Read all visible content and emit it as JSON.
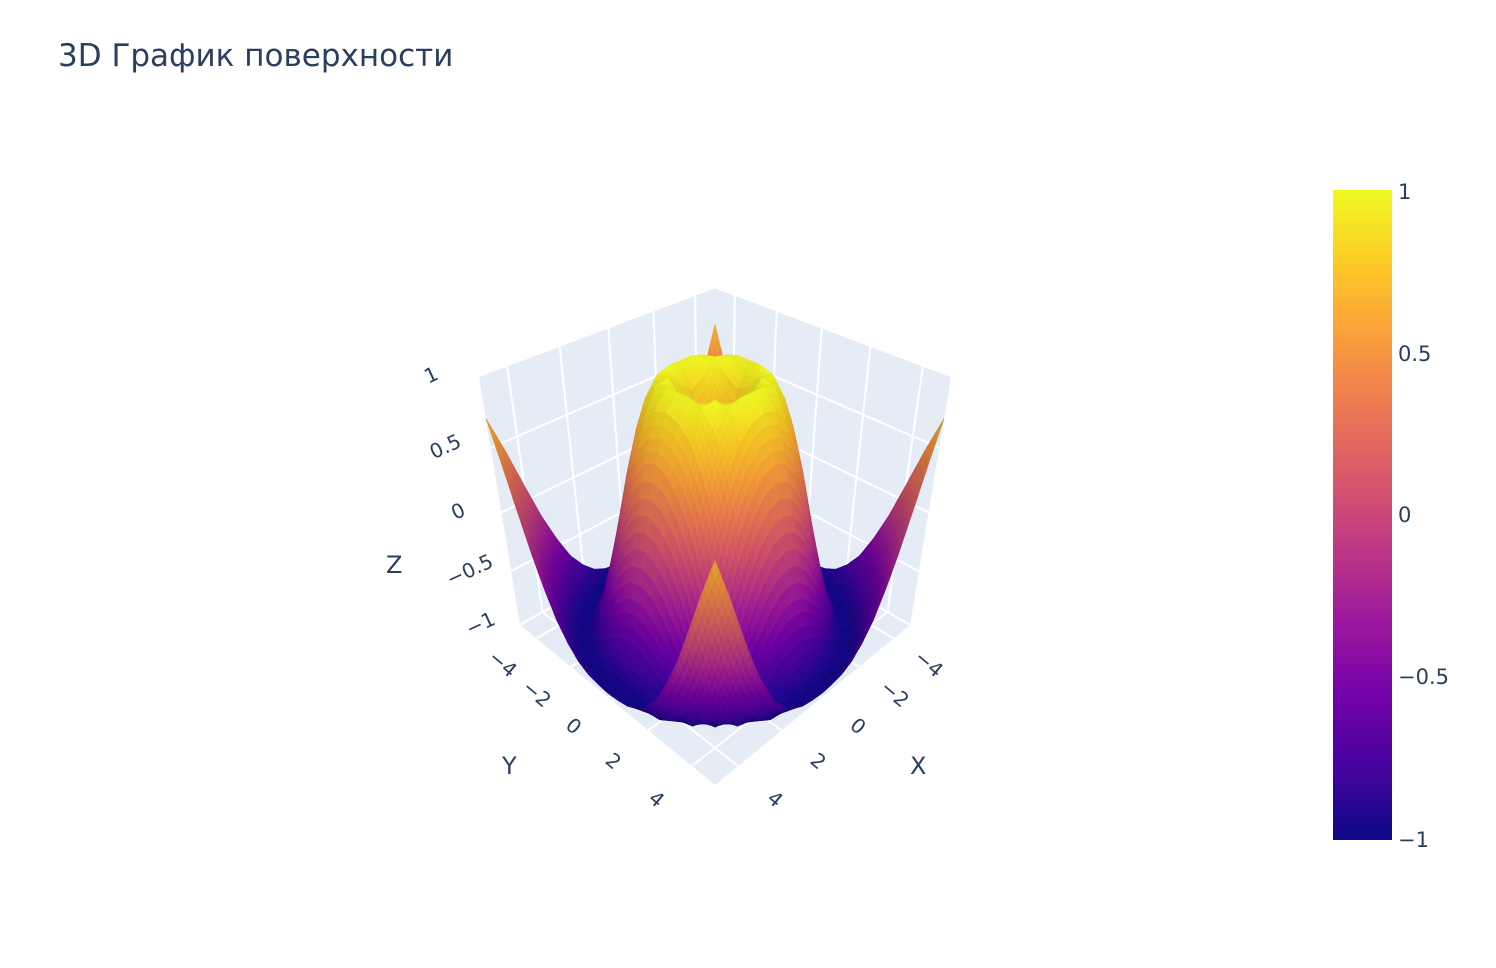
{
  "chart_data": {
    "type": "surface",
    "title": "3D График поверхности",
    "xlabel": "X",
    "ylabel": "Y",
    "zlabel": "Z",
    "xlim": [
      -5,
      5
    ],
    "ylim": [
      -5,
      5
    ],
    "zlim": [
      -1,
      1
    ],
    "xticks": [
      -4,
      -2,
      0,
      2,
      4
    ],
    "yticks": [
      -4,
      -2,
      0,
      2,
      4
    ],
    "zticks": [
      -1,
      -0.5,
      0,
      0.5,
      1
    ],
    "grid": true,
    "background_color": "#e5ecf6",
    "colorscale": [
      "#0d0887",
      "#46039f",
      "#7201a8",
      "#9c179e",
      "#bd3786",
      "#d8576b",
      "#ed7953",
      "#fb9f3a",
      "#fdca26",
      "#f0f921"
    ],
    "colorbar": {
      "ticks": [
        1,
        0.5,
        0,
        -0.5,
        -1
      ],
      "tick_labels": [
        "1",
        "0.5",
        "0",
        "−0.5",
        "−1"
      ],
      "placement": "right"
    },
    "x": [
      -5,
      -4.5,
      -4,
      -3.5,
      -3,
      -2.5,
      -2,
      -1.5,
      -1,
      -0.5,
      0,
      0.5,
      1,
      1.5,
      2,
      2.5,
      3,
      3.5,
      4,
      4.5,
      5
    ],
    "y": [
      -5,
      -4.5,
      -4,
      -3.5,
      -3,
      -2.5,
      -2,
      -1.5,
      -1,
      -0.5,
      0,
      0.5,
      1,
      1.5,
      2,
      2.5,
      3,
      3.5,
      4,
      4.5,
      5
    ],
    "z": [
      [
        0.71,
        0.43,
        0.12,
        -0.18,
        -0.43,
        -0.64,
        -0.78,
        -0.88,
        -0.93,
        -0.95,
        -0.96,
        -0.95,
        -0.93,
        -0.88,
        -0.78,
        -0.64,
        -0.43,
        -0.18,
        0.12,
        0.43,
        0.71
      ],
      [
        0.43,
        0.08,
        -0.26,
        -0.55,
        -0.77,
        -0.91,
        -0.98,
        -1,
        -1,
        -0.98,
        -0.98,
        -0.98,
        -1,
        -1,
        -0.98,
        -0.91,
        -0.77,
        -0.55,
        -0.26,
        0.08,
        0.43
      ],
      [
        0.12,
        -0.26,
        -0.59,
        -0.83,
        -0.96,
        -1,
        -0.97,
        -0.9,
        -0.83,
        -0.78,
        -0.76,
        -0.78,
        -0.83,
        -0.9,
        -0.97,
        -1,
        -0.96,
        -0.83,
        -0.59,
        -0.26,
        0.12
      ],
      [
        -0.18,
        -0.55,
        -0.83,
        -0.97,
        -1,
        -0.92,
        -0.78,
        -0.62,
        -0.48,
        -0.38,
        -0.35,
        -0.38,
        -0.48,
        -0.62,
        -0.78,
        -0.92,
        -1,
        -0.97,
        -0.83,
        -0.55,
        -0.18
      ],
      [
        -0.43,
        -0.77,
        -0.96,
        -1,
        -0.89,
        -0.69,
        -0.45,
        -0.21,
        -0.02,
        0.1,
        0.14,
        0.1,
        -0.02,
        -0.21,
        -0.45,
        -0.69,
        -0.89,
        -1,
        -0.96,
        -0.77,
        -0.43
      ],
      [
        -0.64,
        -0.91,
        -1,
        -0.92,
        -0.69,
        -0.38,
        -0.06,
        0.22,
        0.43,
        0.56,
        0.6,
        0.56,
        0.43,
        0.22,
        -0.06,
        -0.38,
        -0.69,
        -0.92,
        -1,
        -0.91,
        -0.64
      ],
      [
        -0.78,
        -0.98,
        -0.97,
        -0.78,
        -0.45,
        -0.06,
        0.31,
        0.6,
        0.79,
        0.88,
        0.91,
        0.88,
        0.79,
        0.6,
        0.31,
        -0.06,
        -0.45,
        -0.78,
        -0.97,
        -0.98,
        -0.78
      ],
      [
        -0.88,
        -1,
        -0.9,
        -0.62,
        -0.21,
        0.22,
        0.6,
        0.85,
        0.97,
        1,
        1,
        1,
        0.97,
        0.85,
        0.6,
        0.22,
        -0.21,
        -0.62,
        -0.9,
        -1,
        -0.88
      ],
      [
        -0.93,
        -1,
        -0.83,
        -0.48,
        -0.02,
        0.43,
        0.79,
        0.97,
        0.99,
        0.9,
        0.84,
        0.9,
        0.99,
        0.97,
        0.79,
        0.43,
        -0.02,
        -0.48,
        -0.83,
        -1,
        -0.93
      ],
      [
        -0.95,
        -0.98,
        -0.78,
        -0.38,
        0.1,
        0.56,
        0.88,
        1,
        0.9,
        0.65,
        0.48,
        0.65,
        0.9,
        1,
        0.88,
        0.56,
        0.1,
        -0.38,
        -0.78,
        -0.98,
        -0.95
      ],
      [
        -0.96,
        -0.98,
        -0.76,
        -0.35,
        0.14,
        0.6,
        0.91,
        1,
        0.84,
        0.48,
        0,
        0.48,
        0.84,
        1,
        0.91,
        0.6,
        0.14,
        -0.35,
        -0.76,
        -0.98,
        -0.96
      ],
      [
        -0.95,
        -0.98,
        -0.78,
        -0.38,
        0.1,
        0.56,
        0.88,
        1,
        0.9,
        0.65,
        0.48,
        0.65,
        0.9,
        1,
        0.88,
        0.56,
        0.1,
        -0.38,
        -0.78,
        -0.98,
        -0.95
      ],
      [
        -0.93,
        -1,
        -0.83,
        -0.48,
        -0.02,
        0.43,
        0.79,
        0.97,
        0.99,
        0.9,
        0.84,
        0.9,
        0.99,
        0.97,
        0.79,
        0.43,
        -0.02,
        -0.48,
        -0.83,
        -1,
        -0.93
      ],
      [
        -0.88,
        -1,
        -0.9,
        -0.62,
        -0.21,
        0.22,
        0.6,
        0.85,
        0.97,
        1,
        1,
        1,
        0.97,
        0.85,
        0.6,
        0.22,
        -0.21,
        -0.62,
        -0.9,
        -1,
        -0.88
      ],
      [
        -0.78,
        -0.98,
        -0.97,
        -0.78,
        -0.45,
        -0.06,
        0.31,
        0.6,
        0.79,
        0.88,
        0.91,
        0.88,
        0.79,
        0.6,
        0.31,
        -0.06,
        -0.45,
        -0.78,
        -0.97,
        -0.98,
        -0.78
      ],
      [
        -0.64,
        -0.91,
        -1,
        -0.92,
        -0.69,
        -0.38,
        -0.06,
        0.22,
        0.43,
        0.56,
        0.6,
        0.56,
        0.43,
        0.22,
        -0.06,
        -0.38,
        -0.69,
        -0.92,
        -1,
        -0.91,
        -0.64
      ],
      [
        -0.43,
        -0.77,
        -0.96,
        -1,
        -0.89,
        -0.69,
        -0.45,
        -0.21,
        -0.02,
        0.1,
        0.14,
        0.1,
        -0.02,
        -0.21,
        -0.45,
        -0.69,
        -0.89,
        -1,
        -0.96,
        -0.77,
        -0.43
      ],
      [
        -0.18,
        -0.55,
        -0.83,
        -0.97,
        -1,
        -0.92,
        -0.78,
        -0.62,
        -0.48,
        -0.38,
        -0.35,
        -0.38,
        -0.48,
        -0.62,
        -0.78,
        -0.92,
        -1,
        -0.97,
        -0.83,
        -0.55,
        -0.18
      ],
      [
        0.12,
        -0.26,
        -0.59,
        -0.83,
        -0.96,
        -1,
        -0.97,
        -0.9,
        -0.83,
        -0.78,
        -0.76,
        -0.78,
        -0.83,
        -0.9,
        -0.97,
        -1,
        -0.96,
        -0.83,
        -0.59,
        -0.26,
        0.12
      ],
      [
        0.43,
        0.08,
        -0.26,
        -0.55,
        -0.77,
        -0.91,
        -0.98,
        -1,
        -1,
        -0.98,
        -0.98,
        -0.98,
        -1,
        -1,
        -0.98,
        -0.91,
        -0.77,
        -0.55,
        -0.26,
        0.08,
        0.43
      ],
      [
        0.71,
        0.43,
        0.12,
        -0.18,
        -0.43,
        -0.64,
        -0.78,
        -0.88,
        -0.93,
        -0.95,
        -0.96,
        -0.95,
        -0.93,
        -0.88,
        -0.78,
        -0.64,
        -0.43,
        -0.18,
        0.12,
        0.43,
        0.71
      ]
    ]
  }
}
